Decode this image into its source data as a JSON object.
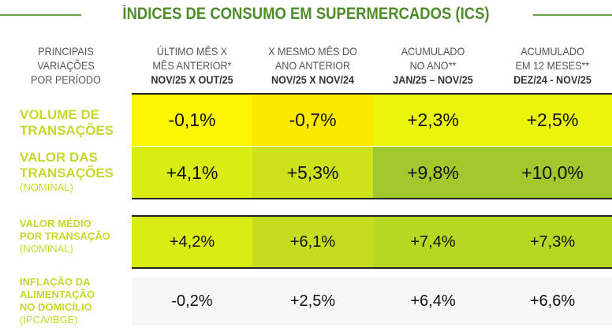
{
  "title": "ÍNDICES DE CONSUMO EM SUPERMERCADOS (ICS)",
  "headers": [
    {
      "lines": [
        "PRINCIPAIS",
        "VARIAÇÕES",
        "POR PERÍODO"
      ],
      "bold": ""
    },
    {
      "lines": [
        "ÚLTIMO MÊS X",
        "MÊS ANTERIOR*"
      ],
      "bold": "NOV/25 X OUT/25"
    },
    {
      "lines": [
        "X MESMO MÊS DO",
        "ANO ANTERIOR"
      ],
      "bold": "NOV/25 X NOV/24"
    },
    {
      "lines": [
        "ACUMULADO",
        "NO ANO**"
      ],
      "bold": "JAN/25 – NOV/25"
    },
    {
      "lines": [
        "ACUMULADO",
        "EM 12 MESES**"
      ],
      "bold": "DEZ/24 - NOV/25"
    }
  ],
  "rows": [
    {
      "label": [
        "VOLUME DE",
        "TRANSAÇÕES"
      ],
      "sub": "",
      "values": [
        "-0,1%",
        "-0,7%",
        "+2,3%",
        "+2,5%"
      ],
      "colors": [
        "#fbf700",
        "#fbea00",
        "#e9f50a",
        "#e9f50a"
      ]
    },
    {
      "label": [
        "VALOR DAS",
        "TRANSAÇÕES"
      ],
      "sub": "(NOMINAL)",
      "values": [
        "+4,1%",
        "+5,3%",
        "+9,8%",
        "+10,0%"
      ],
      "colors": [
        "#d9ec14",
        "#cde21a",
        "#a2c82e",
        "#a2c82e"
      ]
    },
    {
      "label": [
        "VALOR MÉDIO",
        "POR TRANSAÇÃO"
      ],
      "sub": "(NOMINAL)",
      "values": [
        "+4,2%",
        "+6,1%",
        "+7,4%",
        "+7,3%"
      ],
      "colors": [
        "#d9ec14",
        "#c5dd1e",
        "#b8d722",
        "#b8d722"
      ]
    },
    {
      "label": [
        "INFLAÇÃO DA",
        "ALIMENTAÇÃO",
        "NO DOMICÍLIO"
      ],
      "sub": "(IPCA/IBGE)",
      "values": [
        "-0,2%",
        "+2,5%",
        "+6,4%",
        "+6,6%"
      ],
      "colors": [
        "#f7f7f7",
        "#f7f7f7",
        "#f7f7f7",
        "#f7f7f7"
      ]
    }
  ]
}
